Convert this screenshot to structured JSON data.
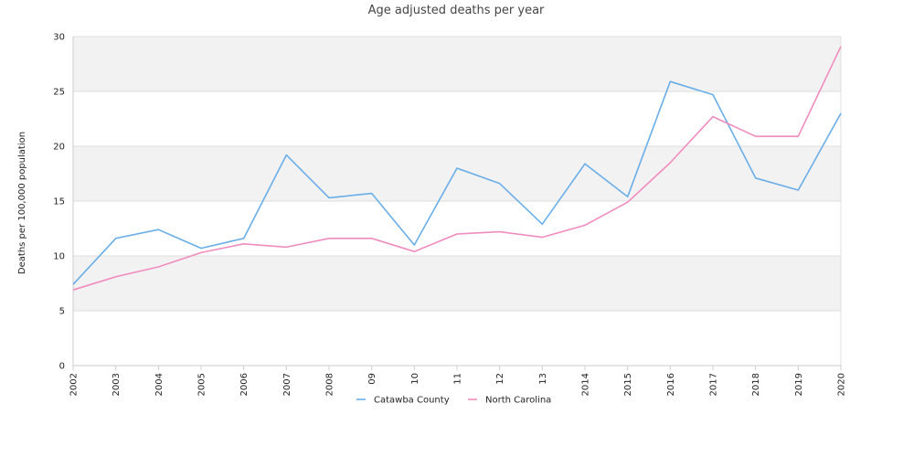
{
  "chart_data": {
    "type": "line",
    "title": "Age adjusted deaths per year",
    "xlabel": "",
    "ylabel": "Deaths per 100,000 population",
    "categories": [
      "2002",
      "2003",
      "2004",
      "2005",
      "2006",
      "2007",
      "2008",
      "09",
      "10",
      "11",
      "12",
      "13",
      "2014",
      "2015",
      "2016",
      "2017",
      "2018",
      "2019",
      "2020"
    ],
    "ylim": [
      0,
      30
    ],
    "yticks": [
      0,
      5,
      10,
      15,
      20,
      25,
      30
    ],
    "grid": true,
    "alternating_bands": true,
    "legend_position": "bottom",
    "series": [
      {
        "name": "Catawba County",
        "color": "#6aaee8",
        "values": [
          7.4,
          11.6,
          12.4,
          10.7,
          11.6,
          19.2,
          15.3,
          15.7,
          11.0,
          18.0,
          16.6,
          12.9,
          18.4,
          15.4,
          25.9,
          24.7,
          17.1,
          16.0,
          23.0
        ]
      },
      {
        "name": "North Carolina",
        "color": "#f08cbf",
        "values": [
          6.9,
          8.1,
          9.0,
          10.3,
          11.1,
          10.8,
          11.6,
          11.6,
          10.4,
          12.0,
          12.2,
          11.7,
          12.8,
          14.9,
          18.5,
          22.7,
          20.9,
          20.9,
          29.1
        ]
      }
    ]
  }
}
